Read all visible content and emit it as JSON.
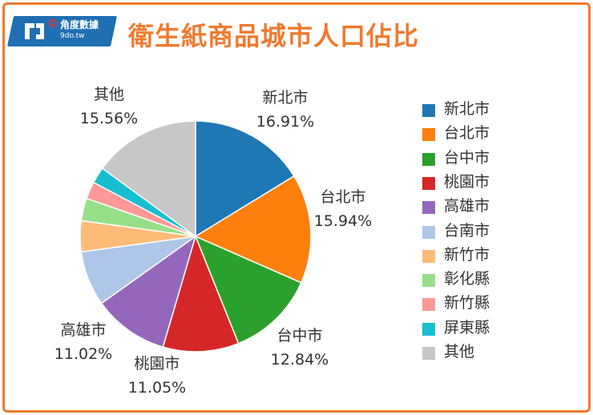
{
  "logo": {
    "name": "角度數據",
    "url": "9do.tw"
  },
  "title": "衛生紙商品城市人口佔比",
  "chart_data": {
    "type": "pie",
    "title": "衛生紙商品城市人口佔比",
    "start_angle_deg": 0,
    "direction": "clockwise",
    "legend_placement": "right",
    "slices": [
      {
        "label": "新北市",
        "value": 16.91,
        "value_label": "16.91%",
        "color": "#1f77b4",
        "show_label": true
      },
      {
        "label": "台北市",
        "value": 15.94,
        "value_label": "15.94%",
        "color": "#ff7f0e",
        "show_label": true
      },
      {
        "label": "台中市",
        "value": 12.84,
        "value_label": "12.84%",
        "color": "#2ca02c",
        "show_label": true
      },
      {
        "label": "桃園市",
        "value": 11.05,
        "value_label": "11.05%",
        "color": "#d62728",
        "show_label": true
      },
      {
        "label": "高雄市",
        "value": 11.02,
        "value_label": "11.02%",
        "color": "#9467bd",
        "show_label": true
      },
      {
        "label": "台南市",
        "value": 8.0,
        "value_label": "",
        "color": "#aec7e8",
        "show_label": false
      },
      {
        "label": "新竹市",
        "value": 4.5,
        "value_label": "",
        "color": "#ffbb78",
        "show_label": false
      },
      {
        "label": "彰化縣",
        "value": 3.3,
        "value_label": "",
        "color": "#98df8a",
        "show_label": false
      },
      {
        "label": "新竹縣",
        "value": 2.5,
        "value_label": "",
        "color": "#ff9896",
        "show_label": false
      },
      {
        "label": "屏東縣",
        "value": 2.38,
        "value_label": "",
        "color": "#17becf",
        "show_label": false
      },
      {
        "label": "其他",
        "value": 15.56,
        "value_label": "15.56%",
        "color": "#c7c7c7",
        "show_label": true
      }
    ]
  }
}
